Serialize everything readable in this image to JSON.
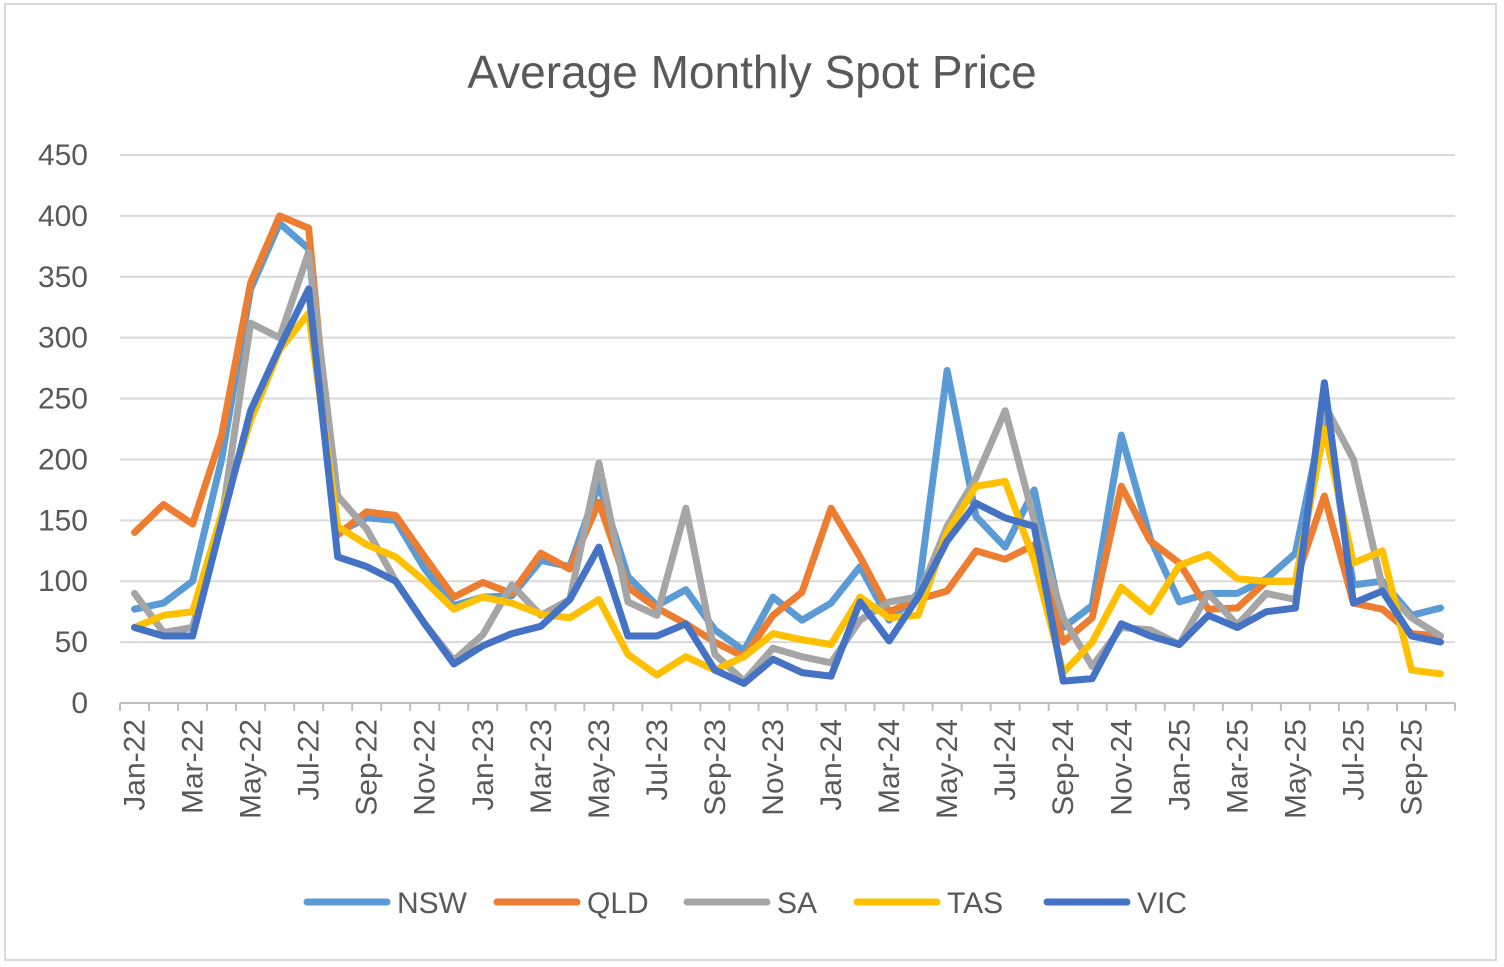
{
  "chart_data": {
    "type": "line",
    "title": "Average Monthly Spot Price",
    "xlabel": "",
    "ylabel": "",
    "ylim": [
      0,
      450
    ],
    "yticks": [
      0,
      50,
      100,
      150,
      200,
      250,
      300,
      350,
      400,
      450
    ],
    "grid": true,
    "legend_position": "bottom",
    "x": [
      "Jan-22",
      "Feb-22",
      "Mar-22",
      "Apr-22",
      "May-22",
      "Jun-22",
      "Jul-22",
      "Aug-22",
      "Sep-22",
      "Oct-22",
      "Nov-22",
      "Dec-22",
      "Jan-23",
      "Feb-23",
      "Mar-23",
      "Apr-23",
      "May-23",
      "Jun-23",
      "Jul-23",
      "Aug-23",
      "Sep-23",
      "Oct-23",
      "Nov-23",
      "Dec-23",
      "Jan-24",
      "Feb-24",
      "Mar-24",
      "Apr-24",
      "May-24",
      "Jun-24",
      "Jul-24",
      "Aug-24",
      "Sep-24",
      "Oct-24",
      "Nov-24",
      "Dec-24",
      "Jan-25",
      "Feb-25",
      "Mar-25",
      "Apr-25",
      "May-25",
      "Jun-25",
      "Jul-25",
      "Aug-25",
      "Sep-25",
      "Oct-25"
    ],
    "x_tick_labels": [
      "Jan-22",
      "Mar-22",
      "May-22",
      "Jul-22",
      "Sep-22",
      "Nov-22",
      "Jan-23",
      "Mar-23",
      "May-23",
      "Jul-23",
      "Sep-23",
      "Nov-23",
      "Jan-24",
      "Mar-24",
      "May-24",
      "Jul-24",
      "Sep-24",
      "Nov-24",
      "Jan-25",
      "Mar-25",
      "May-25",
      "Jul-25",
      "Sep-25"
    ],
    "series": [
      {
        "name": "NSW",
        "color": "#5b9bd5",
        "values": [
          77,
          82,
          100,
          200,
          340,
          394,
          373,
          140,
          152,
          150,
          110,
          80,
          87,
          88,
          117,
          112,
          180,
          104,
          80,
          93,
          60,
          43,
          87,
          68,
          82,
          112,
          68,
          90,
          273,
          153,
          128,
          175,
          62,
          80,
          220,
          135,
          83,
          90,
          90,
          102,
          123,
          240,
          97,
          100,
          72,
          78
        ]
      },
      {
        "name": "QLD",
        "color": "#ed7d31",
        "values": [
          140,
          163,
          147,
          220,
          345,
          400,
          390,
          138,
          157,
          154,
          120,
          87,
          99,
          90,
          123,
          110,
          165,
          95,
          78,
          65,
          50,
          38,
          72,
          91,
          160,
          120,
          75,
          85,
          92,
          125,
          118,
          130,
          50,
          70,
          178,
          133,
          115,
          77,
          78,
          100,
          100,
          170,
          82,
          77,
          57,
          55
        ]
      },
      {
        "name": "SA",
        "color": "#a5a5a5",
        "values": [
          90,
          58,
          62,
          150,
          312,
          300,
          370,
          170,
          143,
          100,
          65,
          35,
          56,
          97,
          72,
          85,
          197,
          83,
          72,
          160,
          40,
          18,
          45,
          38,
          33,
          68,
          83,
          87,
          145,
          185,
          240,
          150,
          70,
          30,
          62,
          60,
          48,
          90,
          64,
          90,
          85,
          245,
          200,
          95,
          70,
          55
        ]
      },
      {
        "name": "TAS",
        "color": "#ffc000",
        "values": [
          62,
          72,
          75,
          155,
          232,
          290,
          320,
          145,
          130,
          120,
          100,
          77,
          87,
          82,
          73,
          70,
          85,
          40,
          23,
          38,
          27,
          38,
          57,
          52,
          48,
          87,
          70,
          72,
          140,
          178,
          182,
          117,
          25,
          50,
          95,
          75,
          113,
          122,
          102,
          100,
          100,
          225,
          115,
          125,
          27,
          24
        ]
      },
      {
        "name": "VIC",
        "color": "#4472c4",
        "values": [
          62,
          55,
          55,
          148,
          240,
          292,
          340,
          120,
          112,
          100,
          65,
          32,
          47,
          57,
          63,
          85,
          128,
          55,
          55,
          65,
          27,
          16,
          36,
          25,
          22,
          83,
          51,
          87,
          133,
          164,
          152,
          145,
          18,
          20,
          65,
          55,
          48,
          72,
          62,
          75,
          78,
          263,
          82,
          92,
          55,
          50
        ]
      }
    ]
  }
}
